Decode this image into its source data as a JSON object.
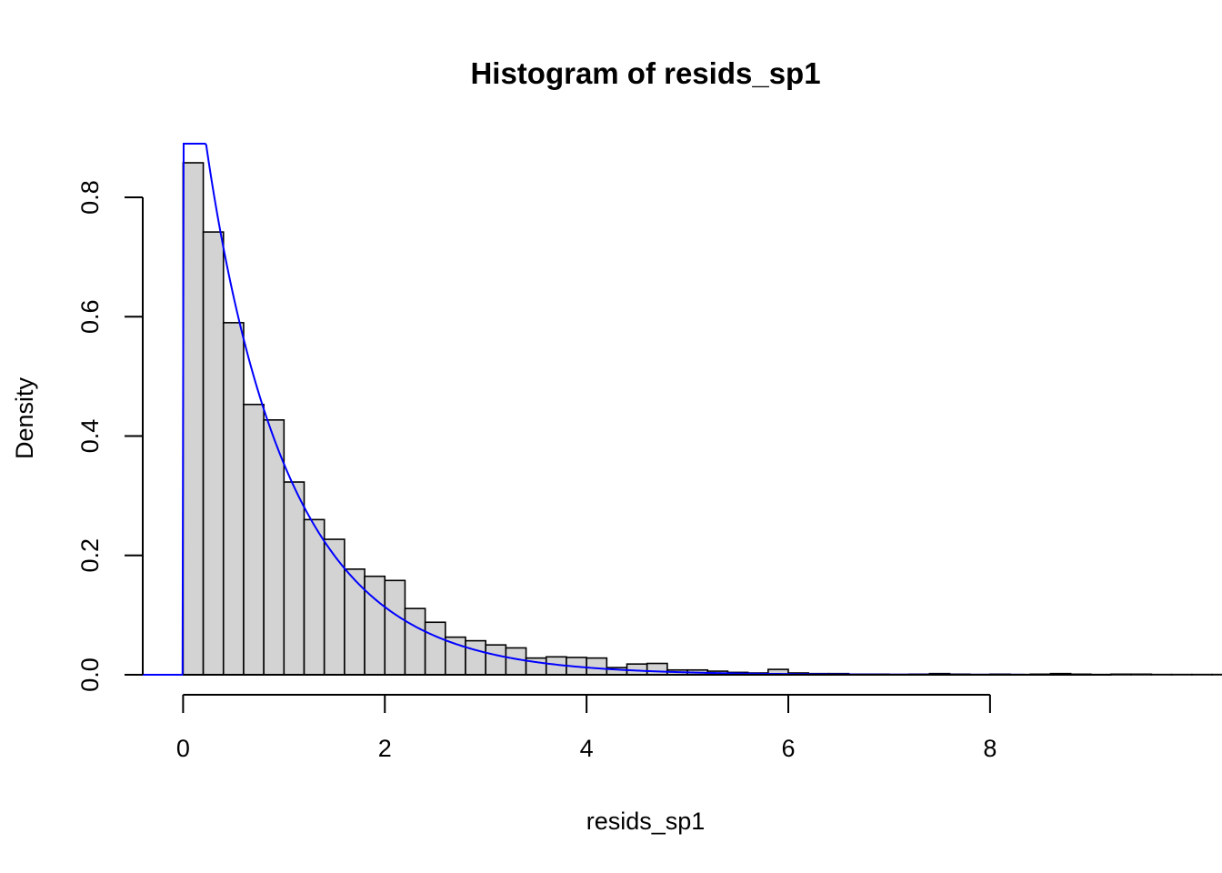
{
  "chart_data": {
    "type": "bar",
    "title": "Histogram of resids_sp1",
    "xlabel": "resids_sp1",
    "ylabel": "Density",
    "xlim": [
      -0.4,
      9.2
    ],
    "ylim": [
      0,
      0.89
    ],
    "x_ticks": [
      0,
      2,
      4,
      6,
      8
    ],
    "x_tick_labels": [
      "0",
      "2",
      "4",
      "6",
      "8"
    ],
    "y_ticks": [
      0,
      0.2,
      0.4,
      0.6,
      0.8
    ],
    "y_tick_labels": [
      "0.0",
      "0.2",
      "0.4",
      "0.6",
      "0.8"
    ],
    "bin_width": 0.2,
    "bin_start": 0,
    "densities": [
      0.858,
      0.742,
      0.59,
      0.453,
      0.427,
      0.323,
      0.26,
      0.227,
      0.177,
      0.165,
      0.158,
      0.111,
      0.088,
      0.063,
      0.057,
      0.05,
      0.045,
      0.028,
      0.03,
      0.029,
      0.028,
      0.012,
      0.018,
      0.019,
      0.008,
      0.008,
      0.006,
      0.004,
      0.003,
      0.009,
      0.003,
      0.002,
      0.002,
      0.001,
      0.001,
      0.0005,
      0.001,
      0.002,
      0.001,
      0.0005,
      0.001,
      0.0005,
      0.001,
      0.002,
      0.001,
      0.0005,
      0.001,
      0.001,
      0.0005,
      0.0005,
      0.0005,
      0.0005,
      0.0005,
      0.0005,
      0.0005,
      0.0005,
      0.0005,
      0.0005,
      0.0005,
      0.0005,
      0.0005,
      0.0005,
      0.0005,
      0.0005,
      0.0005,
      0.0005
    ],
    "curve": {
      "type": "gamma-density",
      "color": "#0000ff",
      "x_from": -0.4,
      "x_to": 9.2,
      "shape": 0.95,
      "rate": 1.1
    },
    "bar_fill": "#d3d3d3",
    "grid": false,
    "legend": "none"
  }
}
